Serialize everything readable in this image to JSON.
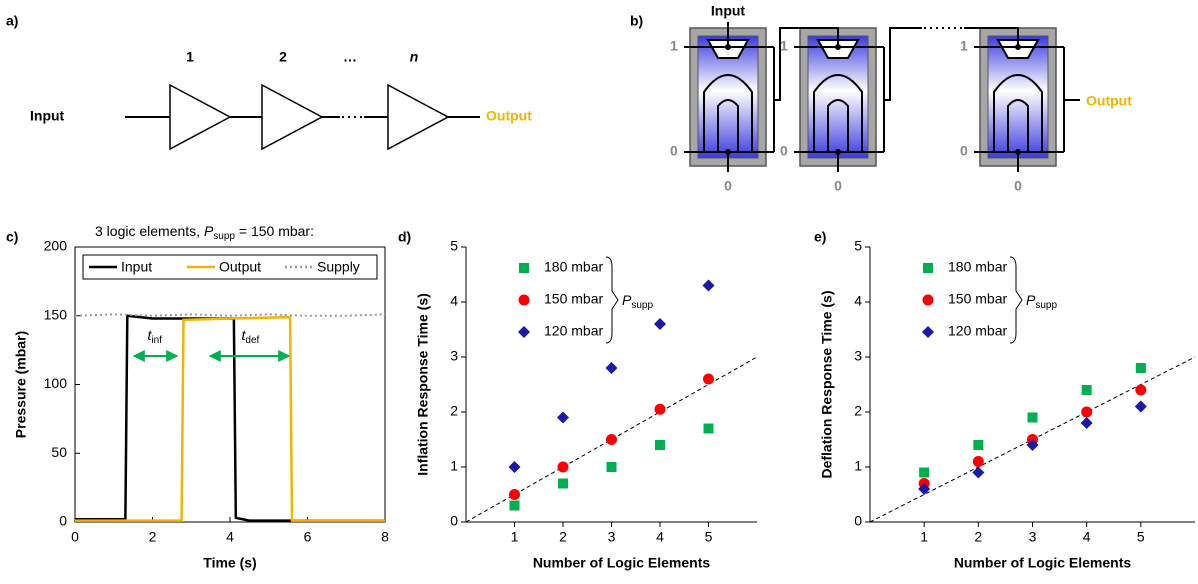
{
  "panel_labels": [
    "a)",
    "b)",
    "c)",
    "d)",
    "e)"
  ],
  "diagram_a": {
    "input": "Input",
    "output": "Output",
    "stages": [
      "1",
      "2",
      "…",
      "n"
    ]
  },
  "diagram_b": {
    "input": "Input",
    "output": "Output",
    "elements": [
      {
        "high": "1",
        "low": "0",
        "base": "0"
      },
      {
        "high": "1",
        "low": "0",
        "base": "0"
      },
      {
        "high": "1",
        "low": "0",
        "base": "0"
      }
    ]
  },
  "chart_data": [
    {
      "type": "line",
      "title": [
        "3 logic elements, ",
        "P",
        "supp",
        " = 150 mbar:"
      ],
      "x_label": "Time (s)",
      "y_label": "Pressure (mbar)",
      "xlim": [
        0,
        8
      ],
      "xticks": [
        0,
        2,
        4,
        6,
        8
      ],
      "ylim": [
        0,
        200
      ],
      "yticks": [
        0,
        50,
        100,
        150,
        200
      ],
      "frame": true,
      "series": [
        {
          "name": "Input",
          "color": "#000000",
          "x": [
            0,
            1.3,
            1.35,
            2.0,
            2.7,
            4.1,
            4.15,
            4.5,
            8
          ],
          "values": [
            2,
            2,
            150,
            148,
            148,
            148,
            3,
            1,
            1
          ]
        },
        {
          "name": "Output",
          "color": "#f5b400",
          "x": [
            0,
            2.75,
            2.8,
            4.0,
            5.55,
            5.6,
            8
          ],
          "values": [
            1,
            1,
            147,
            148,
            149,
            1,
            1
          ]
        },
        {
          "name": "Supply",
          "color": "#999999",
          "dash": "dotted",
          "x": [
            0,
            1,
            2,
            3,
            4,
            5,
            6,
            7,
            8
          ],
          "values": [
            150,
            151,
            150,
            151,
            150,
            151,
            150,
            150,
            151
          ]
        }
      ],
      "annotations": [
        [
          "t",
          "inf"
        ],
        [
          "t",
          "def"
        ]
      ]
    },
    {
      "type": "scatter",
      "x_label": "Number of Logic Elements",
      "y_label": "Inflation Response Time (s)",
      "xlim": [
        0,
        6
      ],
      "xticks": [
        1,
        2,
        3,
        4,
        5
      ],
      "ylim": [
        0,
        5
      ],
      "yticks": [
        0,
        1,
        2,
        3,
        4,
        5
      ],
      "x": [
        1,
        2,
        3,
        4,
        5
      ],
      "series": [
        {
          "name": "180 mbar",
          "color": "#00b050",
          "marker": "square",
          "values": [
            0.3,
            0.7,
            1.0,
            1.4,
            1.7
          ]
        },
        {
          "name": "150 mbar",
          "color": "#ff0000",
          "marker": "circle",
          "values": [
            0.5,
            1.0,
            1.5,
            2.05,
            2.6
          ]
        },
        {
          "name": "120 mbar",
          "color": "#1a1aa6",
          "marker": "diamond",
          "values": [
            1.0,
            1.9,
            2.8,
            3.6,
            4.3
          ]
        }
      ],
      "legend_bracket": [
        "P",
        "supp"
      ],
      "trend": {
        "x": [
          0,
          6
        ],
        "y": [
          0,
          3
        ]
      }
    },
    {
      "type": "scatter",
      "x_label": "Number of Logic Elements",
      "y_label": "Deflation Response Time (s)",
      "xlim": [
        0,
        6
      ],
      "xticks": [
        1,
        2,
        3,
        4,
        5
      ],
      "ylim": [
        0,
        5
      ],
      "yticks": [
        0,
        1,
        2,
        3,
        4,
        5
      ],
      "x": [
        1,
        2,
        3,
        4,
        5
      ],
      "series": [
        {
          "name": "180 mbar",
          "color": "#00b050",
          "marker": "square",
          "values": [
            0.9,
            1.4,
            1.9,
            2.4,
            2.8
          ]
        },
        {
          "name": "150 mbar",
          "color": "#ff0000",
          "marker": "circle",
          "values": [
            0.7,
            1.1,
            1.5,
            2.0,
            2.4
          ]
        },
        {
          "name": "120 mbar",
          "color": "#1a1aa6",
          "marker": "diamond",
          "values": [
            0.6,
            0.9,
            1.4,
            1.8,
            2.1
          ]
        }
      ],
      "legend_bracket": [
        "P",
        "supp"
      ],
      "trend": {
        "x": [
          0,
          6
        ],
        "y": [
          0,
          3
        ]
      }
    }
  ]
}
